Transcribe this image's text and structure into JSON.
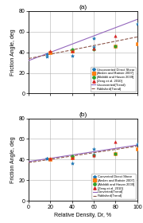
{
  "chart_data": [
    {
      "type": "scatter",
      "title": "(a)",
      "ylabel": "Friction Angle, deg",
      "xlim": [
        0,
        100
      ],
      "ylim": [
        0,
        80
      ],
      "xticks": [
        0,
        20,
        40,
        60,
        80,
        100
      ],
      "yticks": [
        0,
        20,
        40,
        60,
        80
      ],
      "grid": true,
      "legend": "lower right",
      "tick_labels": "y",
      "series": [
        {
          "name": "Unconverted Direct Shear",
          "type": "scatter",
          "marker": "star",
          "x": [
            17,
            17,
            40,
            60,
            60,
            100
          ],
          "values": [
            36,
            38,
            37,
            45,
            54,
            68
          ]
        },
        {
          "name": "[Arslan and Batiste 2007]",
          "type": "scatter",
          "marker": "square",
          "x": [
            20,
            40,
            80,
            100
          ],
          "values": [
            40,
            41,
            46,
            48
          ]
        },
        {
          "name": "[Alshibli and Hasan 2009]",
          "type": "scatter",
          "marker": "circle",
          "x": [
            40,
            60,
            80
          ],
          "values": [
            43,
            43,
            46
          ]
        },
        {
          "name": "[Zeng et al. 2010]",
          "type": "scatter",
          "marker": "triangle",
          "x": [
            20,
            40,
            60,
            80
          ],
          "values": [
            41,
            41,
            44,
            56
          ]
        },
        {
          "name": "Unconverted(Trend)",
          "type": "line",
          "line_style": "solid",
          "x": [
            0,
            100
          ],
          "values": [
            32,
            72
          ]
        },
        {
          "name": "Published(Trend)",
          "type": "line",
          "line_style": "dashed",
          "x": [
            0,
            100
          ],
          "values": [
            34,
            55
          ]
        }
      ]
    },
    {
      "type": "scatter",
      "title": "(b)",
      "xlabel": "Relative Density, Dr, %",
      "ylabel": "Friction Angle, deg",
      "xlim": [
        0,
        100
      ],
      "ylim": [
        0,
        80
      ],
      "xticks": [
        0,
        20,
        40,
        60,
        80,
        100
      ],
      "yticks": [
        0,
        20,
        40,
        60,
        80
      ],
      "grid": true,
      "legend": "lower right",
      "series": [
        {
          "name": "Converted Direct Shear",
          "type": "scatter",
          "marker": "star",
          "x": [
            17,
            17,
            40,
            60,
            60,
            100
          ],
          "values": [
            41,
            41,
            36,
            45,
            50,
            55
          ]
        },
        {
          "name": "[Arslan and Batiste 2007]",
          "type": "scatter",
          "marker": "square",
          "x": [
            20,
            40,
            80,
            100
          ],
          "values": [
            40,
            42,
            46,
            50
          ]
        },
        {
          "name": "[Alshibli and Hasan 2009]",
          "type": "scatter",
          "marker": "circle",
          "x": [
            40,
            60,
            80
          ],
          "values": [
            43,
            44,
            46
          ]
        },
        {
          "name": "[Zeng et al. 2010]",
          "type": "scatter",
          "marker": "triangle",
          "x": [
            20,
            40,
            60,
            80
          ],
          "values": [
            41,
            42,
            44,
            57
          ]
        },
        {
          "name": "Converted(Trend)",
          "type": "line",
          "line_style": "solid",
          "x": [
            0,
            100
          ],
          "values": [
            38,
            54
          ]
        },
        {
          "name": "Published(Trend)",
          "type": "line",
          "line_style": "dashed",
          "x": [
            0,
            100
          ],
          "values": [
            37,
            53
          ]
        }
      ]
    }
  ]
}
